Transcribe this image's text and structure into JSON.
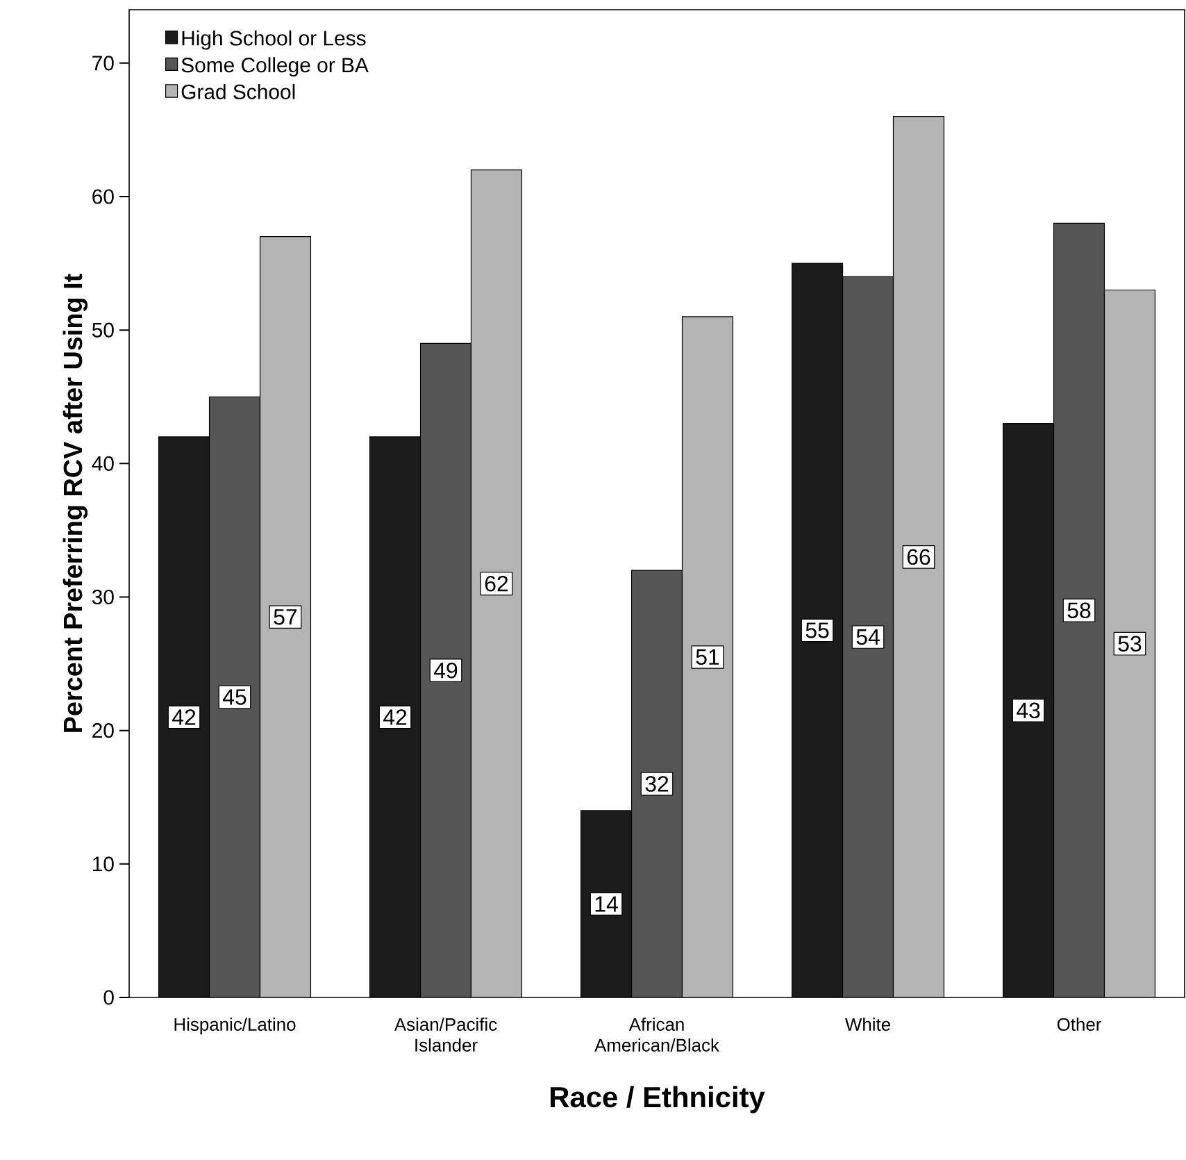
{
  "chart_data": {
    "type": "bar",
    "xlabel": "Race / Ethnicity",
    "ylabel": "Percent Preferring RCV after Using It",
    "categories": [
      "Hispanic/Latino",
      "Asian/Pacific Islander",
      "African American/Black",
      "White",
      "Other"
    ],
    "series": [
      {
        "name": "High School or Less",
        "color": "#1c1c1c",
        "values": [
          42,
          42,
          14,
          55,
          43
        ]
      },
      {
        "name": "Some College or BA",
        "color": "#555555",
        "values": [
          45,
          49,
          32,
          54,
          58
        ]
      },
      {
        "name": "Grad School",
        "color": "#b4b4b4",
        "values": [
          57,
          62,
          51,
          66,
          53
        ]
      }
    ],
    "ylim": [
      0,
      74
    ],
    "yticks": [
      0,
      10,
      20,
      30,
      40,
      50,
      60,
      70
    ],
    "data_labels": true,
    "legend": "top left",
    "grid": false
  }
}
